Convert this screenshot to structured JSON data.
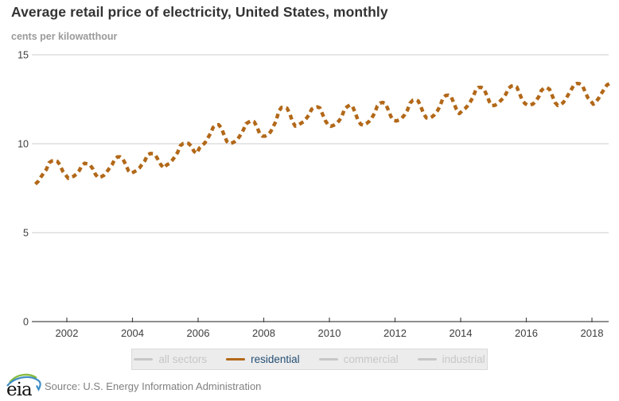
{
  "header": {
    "title": "Average retail price of electricity, United States, monthly",
    "units_label": "cents per kilowatthour"
  },
  "footer": {
    "logo_text": "eia",
    "source": "Source: U.S. Energy Information Administration"
  },
  "colors": {
    "residential_line": "#b26818",
    "inactive": "#c7c7c7",
    "active_label": "#254f74",
    "gridline": "#cccccc",
    "axis": "#4a4a4a",
    "tick_label": "#3d3d3d"
  },
  "chart_data": {
    "type": "line",
    "title": "Average retail price of electricity, United States, monthly",
    "ylabel": "cents per kilowatthour",
    "xlabel": "",
    "ylim": [
      0,
      15
    ],
    "yticks": [
      0,
      5,
      10,
      15
    ],
    "xticks": [
      2002,
      2004,
      2006,
      2008,
      2010,
      2012,
      2014,
      2016,
      2018
    ],
    "x_start": "2001-01",
    "x_end": "2018-08",
    "grid": "horizontal",
    "legend_position": "bottom",
    "legend": [
      {
        "label": "all sectors",
        "active": false
      },
      {
        "label": "residential",
        "active": true
      },
      {
        "label": "commercial",
        "active": false
      },
      {
        "label": "industrial",
        "active": false
      }
    ],
    "series": [
      {
        "name": "residential",
        "color": "#b26818",
        "style": "dashed",
        "start_year": 2001,
        "start_month": 1,
        "values": [
          7.73,
          7.88,
          8.12,
          8.35,
          8.55,
          8.93,
          9.03,
          9.06,
          9.01,
          8.81,
          8.46,
          8.26,
          8.06,
          8.11,
          8.17,
          8.29,
          8.48,
          8.77,
          8.9,
          8.87,
          8.81,
          8.58,
          8.27,
          8.09,
          8.14,
          8.22,
          8.39,
          8.61,
          8.81,
          9.12,
          9.26,
          9.26,
          9.14,
          8.84,
          8.49,
          8.35,
          8.41,
          8.5,
          8.63,
          8.84,
          9.04,
          9.36,
          9.45,
          9.44,
          9.33,
          9.06,
          8.79,
          8.64,
          8.81,
          8.89,
          9.06,
          9.27,
          9.51,
          9.89,
          10.01,
          10.03,
          10.02,
          9.86,
          9.57,
          9.46,
          9.76,
          9.91,
          10.05,
          10.31,
          10.57,
          10.92,
          11.05,
          11.07,
          10.89,
          10.48,
          10.13,
          10.01,
          10.05,
          10.13,
          10.26,
          10.5,
          10.76,
          11.12,
          11.22,
          11.29,
          11.23,
          10.95,
          10.57,
          10.43,
          10.43,
          10.51,
          10.67,
          10.96,
          11.28,
          11.83,
          12.04,
          12.05,
          12.0,
          11.69,
          11.25,
          10.99,
          11.03,
          11.14,
          11.23,
          11.41,
          11.61,
          11.94,
          12.04,
          12.07,
          12.02,
          11.66,
          11.31,
          11.06,
          10.98,
          11.03,
          11.13,
          11.28,
          11.52,
          11.93,
          12.08,
          12.18,
          12.09,
          11.72,
          11.3,
          11.09,
          11.04,
          11.13,
          11.25,
          11.45,
          11.71,
          12.12,
          12.28,
          12.32,
          12.26,
          11.91,
          11.53,
          11.31,
          11.28,
          11.34,
          11.44,
          11.62,
          11.88,
          12.28,
          12.44,
          12.47,
          12.4,
          12.05,
          11.67,
          11.45,
          11.43,
          11.51,
          11.64,
          11.85,
          12.14,
          12.56,
          12.71,
          12.73,
          12.65,
          12.28,
          11.92,
          11.69,
          11.84,
          11.96,
          12.13,
          12.35,
          12.62,
          13.01,
          13.16,
          13.17,
          13.09,
          12.73,
          12.36,
          12.14,
          12.16,
          12.26,
          12.4,
          12.56,
          12.78,
          13.11,
          13.24,
          13.27,
          13.19,
          12.83,
          12.47,
          12.26,
          12.17,
          12.18,
          12.24,
          12.41,
          12.63,
          12.99,
          13.13,
          13.15,
          13.06,
          12.69,
          12.32,
          12.15,
          12.21,
          12.31,
          12.53,
          12.8,
          13.06,
          13.32,
          13.39,
          13.37,
          13.28,
          12.92,
          12.59,
          12.41,
          12.22,
          12.36,
          12.57,
          12.83,
          13.07,
          13.31,
          13.39,
          13.4
        ]
      }
    ]
  }
}
